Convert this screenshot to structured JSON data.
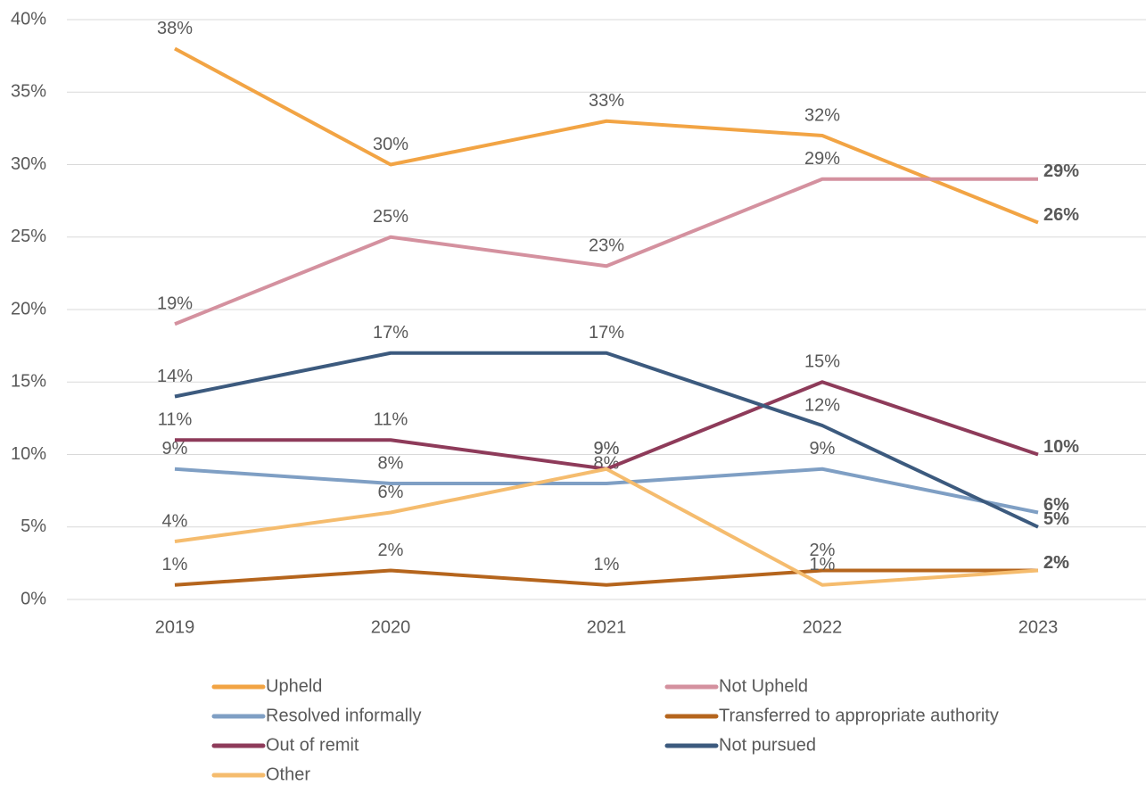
{
  "chart_data": {
    "type": "line",
    "categories": [
      "2019",
      "2020",
      "2021",
      "2022",
      "2023"
    ],
    "ylim": [
      0,
      40
    ],
    "yticks": [
      {
        "value": 0,
        "label": "0%"
      },
      {
        "value": 5,
        "label": "5%"
      },
      {
        "value": 10,
        "label": "10%"
      },
      {
        "value": 15,
        "label": "15%"
      },
      {
        "value": 20,
        "label": "20%"
      },
      {
        "value": 25,
        "label": "25%"
      },
      {
        "value": 30,
        "label": "30%"
      },
      {
        "value": 35,
        "label": "35%"
      },
      {
        "value": 40,
        "label": "40%"
      }
    ],
    "grid": true,
    "legend": "bottom",
    "series": [
      {
        "name": "Upheld",
        "color": "#f2a444",
        "values": [
          38,
          30,
          33,
          32,
          26
        ],
        "value_labels": [
          "38%",
          "30%",
          "33%",
          "32%",
          "26%"
        ]
      },
      {
        "name": "Not Upheld",
        "color": "#d4919f",
        "values": [
          19,
          25,
          23,
          29,
          29
        ],
        "value_labels": [
          "19%",
          "25%",
          "23%",
          "29%",
          "29%"
        ]
      },
      {
        "name": "Resolved informally",
        "color": "#7f9fc4",
        "values": [
          9,
          8,
          8,
          9,
          6
        ],
        "value_labels": [
          "9%",
          "8%",
          "8%",
          "9%",
          "6%"
        ]
      },
      {
        "name": "Transferred to appropriate authority",
        "color": "#b5651d",
        "values": [
          1,
          2,
          1,
          2,
          2
        ],
        "value_labels": [
          "1%",
          "2%",
          "1%",
          "2%",
          "2%"
        ]
      },
      {
        "name": "Out of remit",
        "color": "#8e3b5a",
        "values": [
          11,
          11,
          9,
          15,
          10
        ],
        "value_labels": [
          "11%",
          "11%",
          "9%",
          "15%",
          "10%"
        ]
      },
      {
        "name": "Not pursued",
        "color": "#3c5a7e",
        "values": [
          14,
          17,
          17,
          12,
          5
        ],
        "value_labels": [
          "14%",
          "17%",
          "17%",
          "12%",
          "5%"
        ]
      },
      {
        "name": "Other",
        "color": "#f5bc6e",
        "values": [
          4,
          6,
          9,
          1,
          2
        ],
        "value_labels": [
          "4%",
          "6%",
          "9%",
          "1%",
          "2%"
        ]
      }
    ]
  }
}
